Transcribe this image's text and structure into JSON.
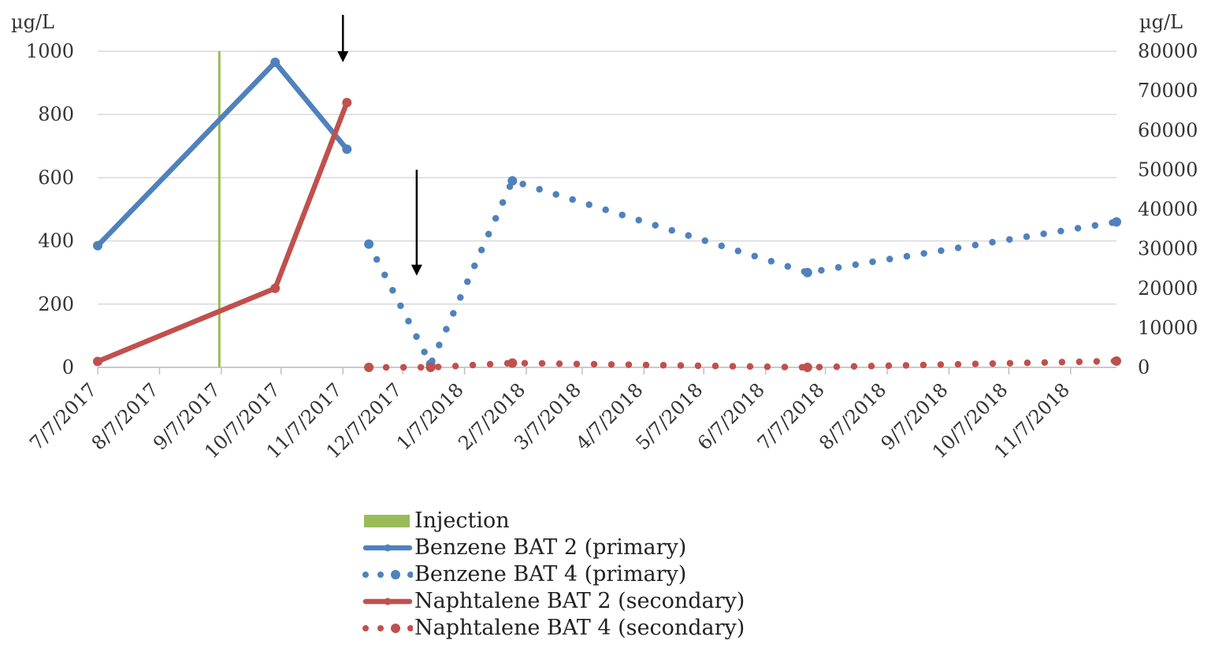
{
  "chart_data": {
    "type": "line",
    "y_left": {
      "label": "µg/L",
      "ticks": [
        0,
        200,
        400,
        600,
        800,
        1000
      ],
      "lim": [
        0,
        1000
      ]
    },
    "y_right": {
      "label": "µg/L",
      "ticks": [
        0,
        10000,
        20000,
        30000,
        40000,
        50000,
        60000,
        70000,
        80000
      ],
      "lim": [
        0,
        80000
      ]
    },
    "x_ticks": [
      "7/7/2017",
      "8/7/2017",
      "9/7/2017",
      "10/7/2017",
      "11/7/2017",
      "12/7/2017",
      "1/7/2018",
      "2/7/2018",
      "3/7/2018",
      "4/7/2018",
      "5/7/2018",
      "6/7/2018",
      "7/7/2018",
      "8/7/2018",
      "9/7/2018",
      "10/7/2018",
      "11/7/2018"
    ],
    "x_range": [
      "2017-07-07",
      "2018-11-30"
    ],
    "grid": "horizontal",
    "legend_placement": "bottom",
    "injection_date": "2017-09-06",
    "arrows": [
      {
        "date": "2017-11-07",
        "y_from": 1115,
        "y_to": 965
      },
      {
        "date": "2017-12-14",
        "y_from": 625,
        "y_to": 290
      }
    ],
    "series": [
      {
        "name": "Injection",
        "style": "vertical-bar",
        "color": "#9bbb59",
        "axis": "left",
        "points": []
      },
      {
        "name": "Benzene BAT 2 (primary)",
        "style": "solid",
        "color": "#4f81bd",
        "axis": "left",
        "points": [
          [
            "2017-07-07",
            385
          ],
          [
            "2017-10-04",
            965
          ],
          [
            "2017-11-09",
            690
          ]
        ]
      },
      {
        "name": "Benzene BAT 4 (primary)",
        "style": "dotted",
        "color": "#4f81bd",
        "axis": "left",
        "points": [
          [
            "2017-11-20",
            390
          ],
          [
            "2017-12-21",
            10
          ],
          [
            "2018-01-31",
            590
          ],
          [
            "2018-06-28",
            300
          ],
          [
            "2018-11-30",
            460
          ]
        ]
      },
      {
        "name": "Naphtalene BAT 2 (secondary)",
        "style": "solid",
        "color": "#c0504d",
        "axis": "right",
        "points": [
          [
            "2017-07-07",
            1500
          ],
          [
            "2017-10-04",
            20000
          ],
          [
            "2017-11-09",
            67000
          ]
        ]
      },
      {
        "name": "Naphtalene BAT 4 (secondary)",
        "style": "dotted",
        "color": "#c0504d",
        "axis": "right",
        "points": [
          [
            "2017-11-20",
            0
          ],
          [
            "2017-12-21",
            0
          ],
          [
            "2018-01-31",
            1100
          ],
          [
            "2018-06-28",
            0
          ],
          [
            "2018-11-30",
            1600
          ]
        ]
      }
    ]
  }
}
